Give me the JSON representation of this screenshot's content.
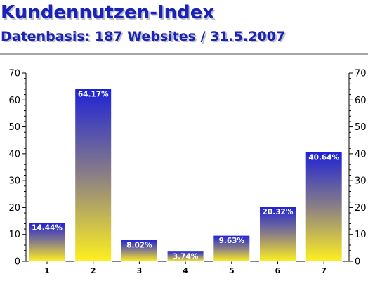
{
  "chart_data": {
    "type": "bar",
    "title": "Kundennutzen-Index",
    "subtitle": "Datenbasis: 187 Websites / 31.5.2007",
    "categories": [
      "1",
      "2",
      "3",
      "4",
      "5",
      "6",
      "7"
    ],
    "values": [
      14.44,
      64.17,
      8.02,
      3.74,
      9.63,
      20.32,
      40.64
    ],
    "data_labels": [
      "14.44%",
      "64.17%",
      "8.02%",
      "3.74%",
      "9.63%",
      "20.32%",
      "40.64%"
    ],
    "ylim": [
      0,
      70
    ],
    "yticks": [
      0,
      10,
      20,
      30,
      40,
      50,
      60,
      70
    ],
    "ytick_labels": [
      "0",
      "10",
      "20",
      "30",
      "40",
      "50",
      "60",
      "70"
    ],
    "secondary_y_axis": true,
    "grid": false,
    "bar_gradient": {
      "top": "#1e22d6",
      "middle": "#8a7f86",
      "bottom": "#fff020"
    },
    "colors": {
      "title": "#1a22b8",
      "axis": "#000000",
      "data_label": "#ffffff",
      "rule": "#888888"
    }
  }
}
